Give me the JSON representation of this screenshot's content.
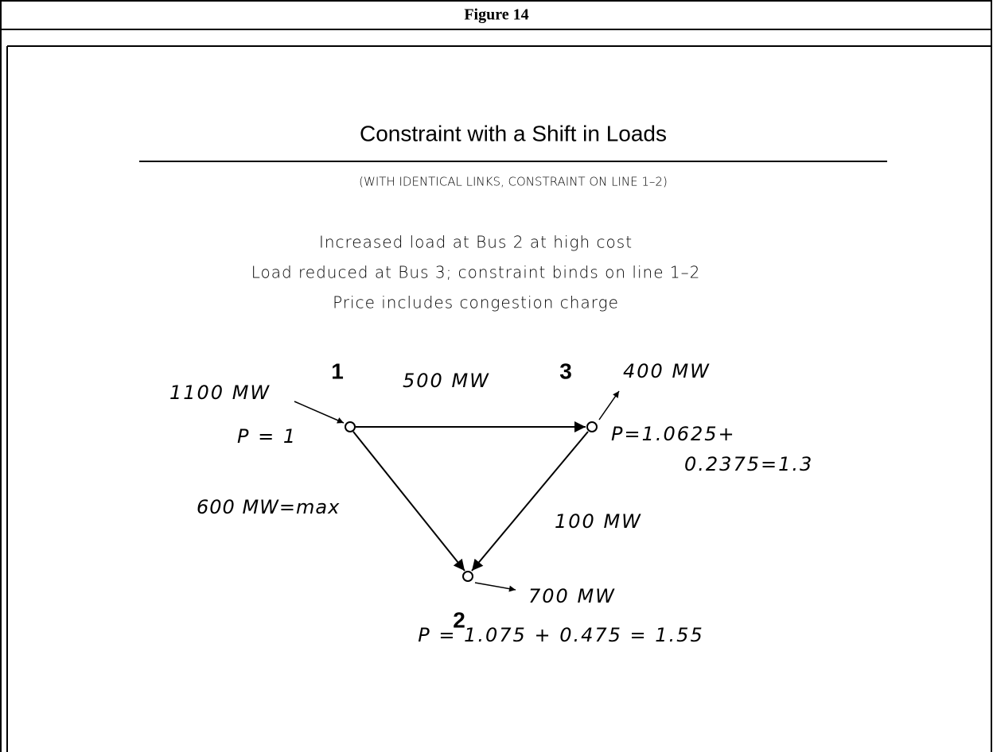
{
  "header": {
    "title": "Figure 14"
  },
  "title": "Constraint with a Shift in Loads",
  "subtitle": "(WITH IDENTICAL LINKS, CONSTRAINT ON LINE 1–2)",
  "notes": [
    "Increased load at Bus 2 at high cost",
    "Load reduced at Bus 3; constraint binds on line 1–2",
    "Price includes congestion charge"
  ],
  "nodes": [
    {
      "label": "1",
      "injection": "1100 MW",
      "price": [
        "P = 1"
      ]
    },
    {
      "label": "3",
      "injection": "400 MW",
      "price": [
        "P=1.0625+",
        "0.2375=1.3"
      ]
    },
    {
      "label": "2",
      "injection": "700 MW",
      "price": [
        "P = 1.075 + 0.475 = 1.55"
      ]
    }
  ],
  "edges": [
    {
      "label": "500 MW"
    },
    {
      "label": "600 MW=max"
    },
    {
      "label": "100 MW"
    }
  ]
}
